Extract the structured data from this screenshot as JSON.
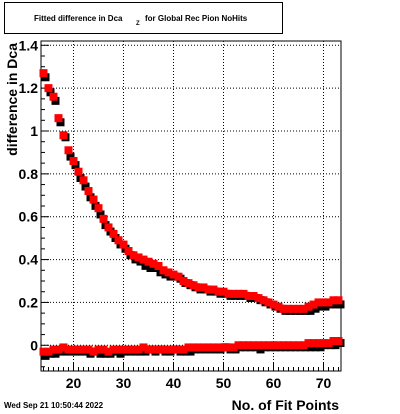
{
  "title": {
    "main": "Fitted difference in Dca",
    "subscript": "Z",
    "tail": "for Global Rec Pion NoHits"
  },
  "timestamp": "Wed Sep 21 10:50:44 2022",
  "chart_data": {
    "type": "scatter",
    "xlabel": "No. of Fit Points",
    "ylabel": "difference in Dca",
    "xlim": [
      13.5,
      73.5
    ],
    "ylim": [
      -0.12,
      1.42
    ],
    "x_ticks": [
      20,
      30,
      40,
      50,
      60,
      70
    ],
    "y_ticks": [
      0,
      0.2,
      0.4,
      0.6,
      0.8,
      1,
      1.2,
      1.4
    ],
    "x_tick_labels": [
      "20",
      "30",
      "40",
      "50",
      "60",
      "70"
    ],
    "y_tick_labels": [
      "0",
      "0.2",
      "0.4",
      "0.6",
      "0.8",
      "1",
      "1.2",
      "1.4"
    ],
    "grid": true,
    "x": [
      14,
      15,
      16,
      17,
      18,
      19,
      20,
      21,
      22,
      23,
      24,
      25,
      26,
      27,
      28,
      29,
      30,
      31,
      32,
      33,
      34,
      35,
      36,
      37,
      38,
      39,
      40,
      41,
      42,
      43,
      44,
      45,
      46,
      47,
      48,
      49,
      50,
      51,
      52,
      53,
      54,
      55,
      56,
      57,
      58,
      59,
      60,
      61,
      62,
      63,
      64,
      65,
      66,
      67,
      68,
      69,
      70,
      71,
      72,
      73
    ],
    "series": [
      {
        "color": "#000000",
        "upper": [
          1.26,
          1.19,
          1.15,
          1.05,
          0.98,
          0.89,
          0.85,
          0.79,
          0.75,
          0.7,
          0.66,
          0.62,
          0.57,
          0.54,
          0.51,
          0.48,
          0.46,
          0.43,
          0.41,
          0.4,
          0.38,
          0.37,
          0.37,
          0.35,
          0.34,
          0.33,
          0.33,
          0.32,
          0.3,
          0.29,
          0.28,
          0.27,
          0.27,
          0.26,
          0.26,
          0.25,
          0.25,
          0.24,
          0.24,
          0.24,
          0.24,
          0.23,
          0.23,
          0.22,
          0.21,
          0.2,
          0.19,
          0.18,
          0.17,
          0.17,
          0.17,
          0.17,
          0.17,
          0.17,
          0.18,
          0.19,
          0.19,
          0.2,
          0.2,
          0.2
        ],
        "lower": [
          -0.04,
          -0.03,
          -0.03,
          -0.02,
          -0.02,
          -0.02,
          -0.02,
          -0.02,
          -0.02,
          -0.03,
          -0.02,
          -0.03,
          -0.03,
          -0.03,
          -0.02,
          -0.03,
          -0.02,
          -0.02,
          -0.02,
          -0.02,
          -0.02,
          -0.01,
          -0.02,
          -0.01,
          -0.02,
          -0.02,
          -0.01,
          -0.02,
          -0.02,
          -0.02,
          -0.01,
          -0.01,
          -0.01,
          -0.01,
          -0.01,
          -0.01,
          0.0,
          -0.01,
          -0.01,
          0.0,
          0.0,
          0.0,
          0.0,
          -0.01,
          0.0,
          0.0,
          0.0,
          0.0,
          0.0,
          0.0,
          0.0,
          0.0,
          0.0,
          0.0,
          0.0,
          0.0,
          0.01,
          0.01,
          0.01,
          0.02
        ]
      },
      {
        "color": "#ff0000",
        "upper": [
          1.27,
          1.2,
          1.16,
          1.06,
          0.98,
          0.91,
          0.86,
          0.81,
          0.77,
          0.72,
          0.68,
          0.64,
          0.59,
          0.55,
          0.52,
          0.49,
          0.47,
          0.44,
          0.42,
          0.41,
          0.4,
          0.39,
          0.38,
          0.37,
          0.35,
          0.34,
          0.33,
          0.32,
          0.3,
          0.29,
          0.28,
          0.27,
          0.27,
          0.26,
          0.26,
          0.25,
          0.25,
          0.24,
          0.24,
          0.24,
          0.24,
          0.23,
          0.23,
          0.22,
          0.21,
          0.2,
          0.19,
          0.18,
          0.17,
          0.17,
          0.17,
          0.17,
          0.17,
          0.18,
          0.19,
          0.2,
          0.2,
          0.2,
          0.21,
          0.21
        ],
        "lower": [
          -0.03,
          -0.03,
          -0.02,
          -0.02,
          -0.01,
          -0.02,
          -0.02,
          -0.02,
          -0.02,
          -0.02,
          -0.03,
          -0.02,
          -0.02,
          -0.03,
          -0.02,
          -0.02,
          -0.02,
          -0.02,
          -0.02,
          -0.02,
          -0.01,
          -0.02,
          -0.02,
          -0.02,
          -0.02,
          -0.02,
          -0.02,
          -0.02,
          -0.02,
          -0.01,
          -0.01,
          -0.01,
          -0.01,
          -0.01,
          -0.01,
          -0.01,
          -0.01,
          -0.01,
          -0.01,
          0.0,
          0.0,
          0.0,
          0.0,
          0.0,
          0.0,
          0.0,
          0.0,
          0.0,
          0.0,
          0.0,
          0.0,
          0.0,
          0.0,
          0.01,
          0.01,
          0.01,
          0.01,
          0.01,
          0.02,
          0.02
        ]
      }
    ]
  }
}
